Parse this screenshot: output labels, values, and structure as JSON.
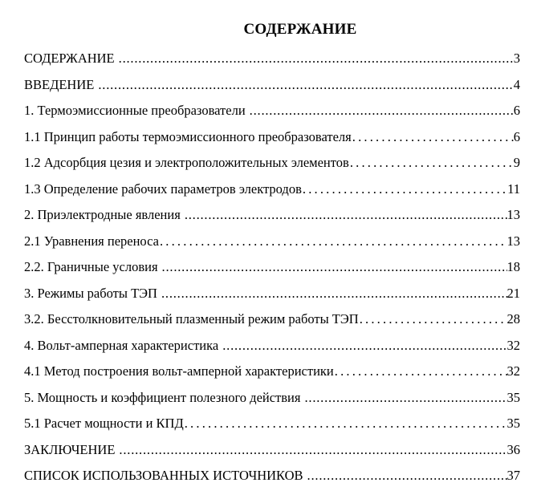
{
  "page": {
    "title": "СОДЕРЖАНИЕ"
  },
  "toc": {
    "entries": [
      {
        "label": "СОДЕРЖАНИЕ",
        "page": "3",
        "leader": "dense"
      },
      {
        "label": "ВВЕДЕНИЕ",
        "page": "4",
        "leader": "dense"
      },
      {
        "label": "1. Термоэмиссионные преобразователи",
        "page": "6",
        "leader": "dense"
      },
      {
        "label": "1.1 Принцип работы термоэмиссионного преобразователя",
        "page": "6",
        "leader": "sparse"
      },
      {
        "label": "1.2 Адсорбция цезия и электроположительных элементов",
        "page": "9",
        "leader": "sparse"
      },
      {
        "label": "1.3 Определение рабочих параметров электродов",
        "page": "11",
        "leader": "sparse"
      },
      {
        "label": "2. Приэлектродные явления",
        "page": "13",
        "leader": "dense"
      },
      {
        "label": "2.1 Уравнения переноса",
        "page": "13",
        "leader": "sparse"
      },
      {
        "label": "2.2. Граничные условия",
        "page": "18",
        "leader": "dense"
      },
      {
        "label": "3. Режимы работы ТЭП",
        "page": "21",
        "leader": "dense"
      },
      {
        "label": "3.2. Бесстолкновительный плазменный режим работы ТЭП",
        "page": "28",
        "leader": "sparse"
      },
      {
        "label": "4. Вольт-амперная характеристика",
        "page": "32",
        "leader": "dense"
      },
      {
        "label": "4.1 Метод построения вольт-амперной характеристики",
        "page": "32",
        "leader": "sparse"
      },
      {
        "label": "5. Мощность и коэффициент полезного действия",
        "page": "35",
        "leader": "dense"
      },
      {
        "label": "5.1 Расчет мощности и КПД",
        "page": "35",
        "leader": "sparse"
      },
      {
        "label": "ЗАКЛЮЧЕНИЕ",
        "page": "36",
        "leader": "dense"
      },
      {
        "label": "СПИСОК ИСПОЛЬЗОВАННЫХ ИСТОЧНИКОВ",
        "page": "37",
        "leader": "dense"
      }
    ]
  }
}
